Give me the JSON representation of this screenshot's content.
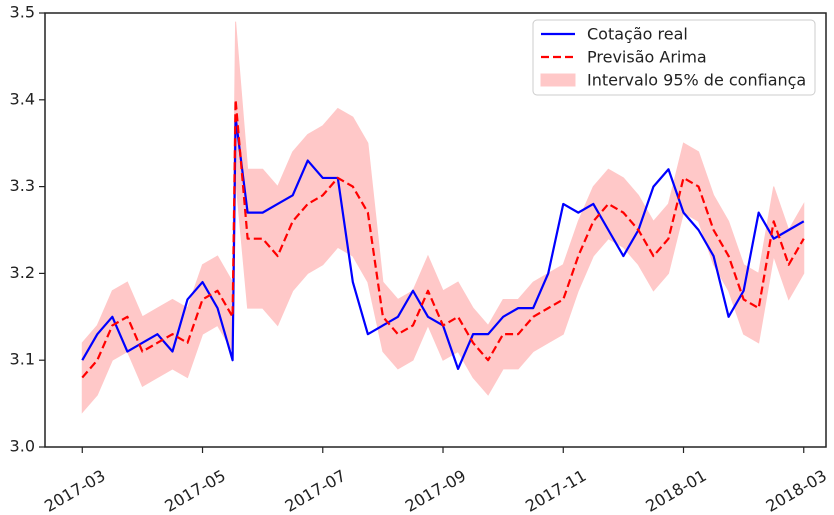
{
  "chart_data": {
    "type": "line",
    "x": [
      0,
      0.25,
      0.5,
      0.75,
      1,
      1.25,
      1.5,
      1.75,
      2,
      2.25,
      2.5,
      2.55,
      2.75,
      3,
      3.25,
      3.5,
      3.75,
      4,
      4.25,
      4.5,
      4.75,
      5,
      5.25,
      5.5,
      5.75,
      6,
      6.25,
      6.5,
      6.75,
      7,
      7.25,
      7.5,
      7.75,
      8,
      8.25,
      8.5,
      8.75,
      9,
      9.25,
      9.5,
      9.75,
      10,
      10.25,
      10.5,
      10.75,
      11,
      11.25,
      11.5,
      11.75,
      12
    ],
    "xlim": [
      -0.62,
      12.37
    ],
    "xticks": [
      {
        "value": 0,
        "label": "2017-03"
      },
      {
        "value": 2,
        "label": "2017-05"
      },
      {
        "value": 4,
        "label": "2017-07"
      },
      {
        "value": 6,
        "label": "2017-09"
      },
      {
        "value": 8,
        "label": "2017-11"
      },
      {
        "value": 10,
        "label": "2018-01"
      },
      {
        "value": 12,
        "label": "2018-03"
      }
    ],
    "ylim": [
      3.0,
      3.5
    ],
    "yticks": [
      {
        "value": 3,
        "label": "3.0"
      },
      3.1,
      3.2,
      3.3,
      3.4,
      3.5
    ],
    "legend": "upper right",
    "series": [
      {
        "name": "Cotação real",
        "color": "#0000ff",
        "style": "solid",
        "values": [
          3.1,
          3.13,
          3.15,
          3.11,
          3.12,
          3.13,
          3.11,
          3.17,
          3.19,
          3.16,
          3.1,
          3.38,
          3.27,
          3.27,
          3.28,
          3.29,
          3.33,
          3.31,
          3.31,
          3.19,
          3.13,
          3.14,
          3.15,
          3.18,
          3.15,
          3.14,
          3.09,
          3.13,
          3.13,
          3.15,
          3.16,
          3.16,
          3.2,
          3.28,
          3.27,
          3.28,
          3.25,
          3.22,
          3.25,
          3.3,
          3.32,
          3.27,
          3.25,
          3.22,
          3.15,
          3.18,
          3.27,
          3.24,
          3.25,
          3.26
        ]
      },
      {
        "name": "Previsão Arima",
        "color": "#ff0000",
        "style": "dashed",
        "values": [
          3.08,
          3.1,
          3.14,
          3.15,
          3.11,
          3.12,
          3.13,
          3.12,
          3.17,
          3.18,
          3.15,
          3.4,
          3.24,
          3.24,
          3.22,
          3.26,
          3.28,
          3.29,
          3.31,
          3.3,
          3.27,
          3.15,
          3.13,
          3.14,
          3.18,
          3.14,
          3.15,
          3.12,
          3.1,
          3.13,
          3.13,
          3.15,
          3.16,
          3.17,
          3.22,
          3.26,
          3.28,
          3.27,
          3.25,
          3.22,
          3.24,
          3.31,
          3.3,
          3.25,
          3.22,
          3.17,
          3.16,
          3.26,
          3.21,
          3.24
        ]
      },
      {
        "name": "Intervalo 95% de confiança",
        "color": "#ffc8c8",
        "style": "band",
        "lower": [
          3.04,
          3.06,
          3.1,
          3.11,
          3.07,
          3.08,
          3.09,
          3.08,
          3.13,
          3.14,
          3.11,
          3.31,
          3.16,
          3.16,
          3.14,
          3.18,
          3.2,
          3.21,
          3.23,
          3.22,
          3.19,
          3.11,
          3.09,
          3.1,
          3.14,
          3.1,
          3.11,
          3.08,
          3.06,
          3.09,
          3.09,
          3.11,
          3.12,
          3.13,
          3.18,
          3.22,
          3.24,
          3.23,
          3.21,
          3.18,
          3.2,
          3.27,
          3.26,
          3.21,
          3.18,
          3.13,
          3.12,
          3.22,
          3.17,
          3.2
        ],
        "upper": [
          3.12,
          3.14,
          3.18,
          3.19,
          3.15,
          3.16,
          3.17,
          3.16,
          3.21,
          3.22,
          3.19,
          3.49,
          3.32,
          3.32,
          3.3,
          3.34,
          3.36,
          3.37,
          3.39,
          3.38,
          3.35,
          3.19,
          3.17,
          3.18,
          3.22,
          3.18,
          3.19,
          3.16,
          3.14,
          3.17,
          3.17,
          3.19,
          3.2,
          3.21,
          3.26,
          3.3,
          3.32,
          3.31,
          3.29,
          3.26,
          3.28,
          3.35,
          3.34,
          3.29,
          3.26,
          3.21,
          3.2,
          3.3,
          3.25,
          3.28
        ]
      }
    ]
  }
}
